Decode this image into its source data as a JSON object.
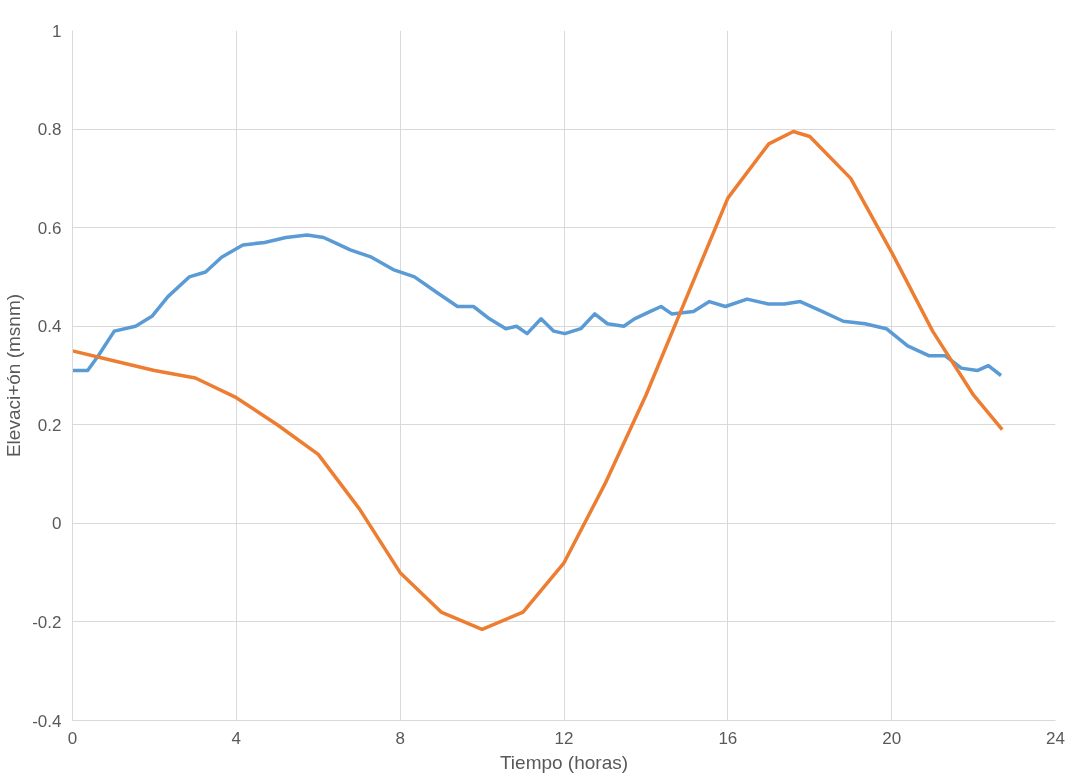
{
  "chart_data": {
    "type": "line",
    "xlabel": "Tiempo (horas)",
    "ylabel": "Elevaci+ón (msnm)",
    "xlim": [
      0,
      24
    ],
    "xticks": [
      0,
      4,
      8,
      12,
      16,
      20,
      24
    ],
    "ylim": [
      -0.4,
      1
    ],
    "yticks": [
      {
        "value": -0.4,
        "label": "-0.4"
      },
      {
        "value": -0.2,
        "label": "-0.2"
      },
      0,
      0.2,
      0.4,
      0.6,
      0.8,
      1
    ],
    "grid": true,
    "marker": "none",
    "line_style": "solid",
    "series": [
      {
        "color": "#5b9bd5",
        "x": [
          0,
          0.37,
          0.63,
          1.02,
          1.54,
          1.94,
          2.33,
          2.85,
          3.25,
          3.64,
          4.16,
          4.69,
          5.21,
          5.73,
          6.13,
          6.39,
          6.78,
          7.3,
          7.83,
          8.35,
          8.87,
          9.4,
          9.79,
          10.18,
          10.58,
          10.84,
          11.1,
          11.44,
          11.75,
          12.02,
          12.41,
          12.75,
          13.06,
          13.46,
          13.72,
          14.11,
          14.37,
          14.63,
          15.16,
          15.55,
          15.94,
          16.47,
          16.99,
          17.38,
          17.77,
          18.3,
          18.82,
          19.35,
          19.87,
          20.39,
          20.92,
          21.31,
          21.7,
          22.09,
          22.36,
          22.67
        ],
        "values": [
          0.31,
          0.31,
          0.34,
          0.39,
          0.4,
          0.42,
          0.46,
          0.5,
          0.51,
          0.54,
          0.565,
          0.57,
          0.58,
          0.585,
          0.58,
          0.57,
          0.555,
          0.54,
          0.515,
          0.5,
          0.47,
          0.44,
          0.44,
          0.415,
          0.395,
          0.4,
          0.385,
          0.415,
          0.39,
          0.385,
          0.395,
          0.425,
          0.405,
          0.4,
          0.415,
          0.43,
          0.44,
          0.425,
          0.43,
          0.45,
          0.44,
          0.455,
          0.445,
          0.445,
          0.45,
          0.43,
          0.41,
          0.405,
          0.395,
          0.36,
          0.34,
          0.34,
          0.315,
          0.31,
          0.32,
          0.3
        ]
      },
      {
        "color": "#ed7d31",
        "x": [
          0,
          1,
          2,
          3,
          4,
          5,
          6,
          7,
          8,
          9,
          10,
          11,
          12,
          13,
          14,
          15,
          16,
          17,
          17.6,
          18,
          19,
          20,
          21,
          22,
          22.7
        ],
        "values": [
          0.35,
          0.33,
          0.31,
          0.295,
          0.255,
          0.2,
          0.14,
          0.03,
          -0.1,
          -0.18,
          -0.215,
          -0.18,
          -0.08,
          0.08,
          0.26,
          0.46,
          0.66,
          0.77,
          0.795,
          0.785,
          0.7,
          0.55,
          0.39,
          0.26,
          0.19
        ]
      }
    ]
  }
}
